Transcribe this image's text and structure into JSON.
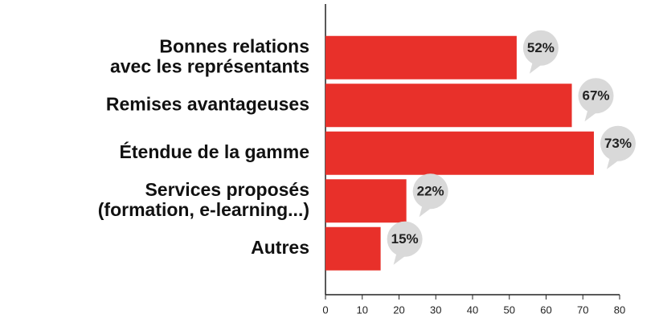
{
  "chart_data": {
    "type": "bar",
    "orientation": "horizontal",
    "categories": [
      [
        "Bonnes relations",
        "avec les représentants"
      ],
      [
        "Remises avantageuses"
      ],
      [
        "Étendue de la gamme"
      ],
      [
        "Services proposés",
        "(formation, e-learning...)"
      ],
      [
        "Autres"
      ]
    ],
    "values": [
      52,
      67,
      73,
      22,
      15
    ],
    "value_labels": [
      "52%",
      "67%",
      "73%",
      "22%",
      "15%"
    ],
    "color": "#e8302a",
    "xlim": [
      0,
      80
    ],
    "xticks": [
      0,
      10,
      20,
      30,
      40,
      50,
      60,
      70,
      80
    ]
  }
}
